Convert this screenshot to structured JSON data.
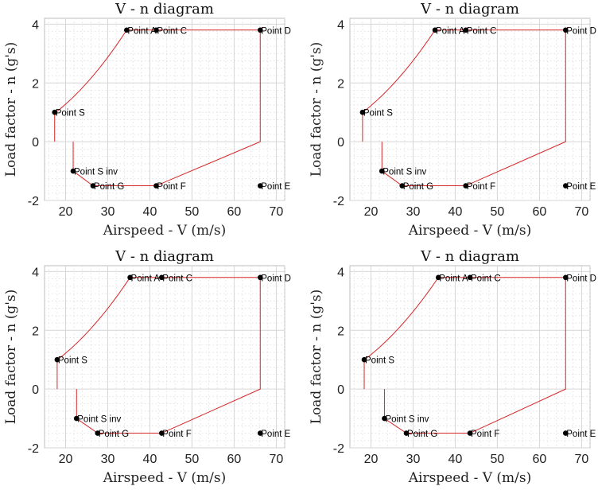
{
  "chart_data": [
    {
      "type": "line",
      "title": "V - n diagram",
      "xlabel": "Airspeed - V (m/s)",
      "ylabel": "Load factor - n (g's)",
      "xlim": [
        15,
        72
      ],
      "ylim": [
        -2,
        4.2
      ],
      "xticks": [
        20,
        30,
        40,
        50,
        60,
        70
      ],
      "yticks": [
        -2,
        0,
        2,
        4
      ],
      "grid": true,
      "envelope": [
        [
          17.4,
          0
        ],
        [
          17.4,
          1
        ],
        [
          34.5,
          3.8
        ],
        [
          41.5,
          3.8
        ],
        [
          66.2,
          3.8
        ],
        [
          66.2,
          0
        ],
        [
          41.5,
          -1.5
        ],
        [
          26.5,
          -1.5
        ],
        [
          21.8,
          -1
        ],
        [
          21.8,
          0
        ]
      ],
      "points": [
        {
          "label": "Point S",
          "x": 17.4,
          "y": 1
        },
        {
          "label": "Point A",
          "x": 34.5,
          "y": 3.8
        },
        {
          "label": "Point C",
          "x": 41.5,
          "y": 3.8
        },
        {
          "label": "Point D",
          "x": 66.2,
          "y": 3.8
        },
        {
          "label": "Point E",
          "x": 66.2,
          "y": -1.5
        },
        {
          "label": "Point F",
          "x": 41.5,
          "y": -1.5
        },
        {
          "label": "Point G",
          "x": 26.5,
          "y": -1.5
        },
        {
          "label": "Point S inv",
          "x": 21.8,
          "y": -1
        }
      ]
    },
    {
      "type": "line",
      "title": "V - n diagram",
      "xlabel": "Airspeed - V (m/s)",
      "ylabel": "Load factor - n (g's)",
      "xlim": [
        15,
        72
      ],
      "ylim": [
        -2,
        4.2
      ],
      "xticks": [
        20,
        30,
        40,
        50,
        60,
        70
      ],
      "yticks": [
        -2,
        0,
        2,
        4
      ],
      "grid": true,
      "envelope": [
        [
          18,
          0
        ],
        [
          18,
          1
        ],
        [
          35.2,
          3.8
        ],
        [
          42.5,
          3.8
        ],
        [
          66.2,
          3.8
        ],
        [
          66.2,
          0
        ],
        [
          42.5,
          -1.5
        ],
        [
          27.4,
          -1.5
        ],
        [
          22.6,
          -1
        ],
        [
          22.6,
          0
        ]
      ],
      "points": [
        {
          "label": "Point S",
          "x": 18,
          "y": 1
        },
        {
          "label": "Point A",
          "x": 35.2,
          "y": 3.8
        },
        {
          "label": "Point C",
          "x": 42.5,
          "y": 3.8
        },
        {
          "label": "Point D",
          "x": 66.2,
          "y": 3.8
        },
        {
          "label": "Point E",
          "x": 66.2,
          "y": -1.5
        },
        {
          "label": "Point F",
          "x": 42.5,
          "y": -1.5
        },
        {
          "label": "Point G",
          "x": 27.4,
          "y": -1.5
        },
        {
          "label": "Point S inv",
          "x": 22.6,
          "y": -1
        }
      ]
    },
    {
      "type": "line",
      "title": "V - n diagram",
      "xlabel": "Airspeed - V (m/s)",
      "ylabel": "Load factor - n (g's)",
      "xlim": [
        15,
        72
      ],
      "ylim": [
        -2,
        4.2
      ],
      "xticks": [
        20,
        30,
        40,
        50,
        60,
        70
      ],
      "yticks": [
        -2,
        0,
        2,
        4
      ],
      "grid": true,
      "envelope": [
        [
          18,
          0
        ],
        [
          18,
          1
        ],
        [
          35.3,
          3.8
        ],
        [
          42.8,
          3.8
        ],
        [
          66.2,
          3.8
        ],
        [
          66.2,
          0
        ],
        [
          42.8,
          -1.5
        ],
        [
          27.6,
          -1.5
        ],
        [
          22.6,
          -1
        ],
        [
          22.6,
          0
        ]
      ],
      "points": [
        {
          "label": "Point S",
          "x": 18,
          "y": 1
        },
        {
          "label": "Point A",
          "x": 35.3,
          "y": 3.8
        },
        {
          "label": "Point C",
          "x": 42.8,
          "y": 3.8
        },
        {
          "label": "Point D",
          "x": 66.2,
          "y": 3.8
        },
        {
          "label": "Point E",
          "x": 66.2,
          "y": -1.5
        },
        {
          "label": "Point F",
          "x": 42.8,
          "y": -1.5
        },
        {
          "label": "Point G",
          "x": 27.6,
          "y": -1.5
        },
        {
          "label": "Point S inv",
          "x": 22.6,
          "y": -1
        }
      ]
    },
    {
      "type": "line",
      "title": "V - n diagram",
      "xlabel": "Airspeed - V (m/s)",
      "ylabel": "Load factor - n (g's)",
      "xlim": [
        15,
        72
      ],
      "ylim": [
        -2,
        4.2
      ],
      "xticks": [
        20,
        30,
        40,
        50,
        60,
        70
      ],
      "yticks": [
        -2,
        0,
        2,
        4
      ],
      "grid": true,
      "envelope": [
        [
          18.4,
          0
        ],
        [
          18.4,
          1
        ],
        [
          36,
          3.8
        ],
        [
          43.5,
          3.8
        ],
        [
          66.2,
          3.8
        ],
        [
          66.2,
          0
        ],
        [
          43.5,
          -1.5
        ],
        [
          28.4,
          -1.5
        ],
        [
          23.2,
          -1
        ],
        [
          23.2,
          0
        ]
      ],
      "points": [
        {
          "label": "Point S",
          "x": 18.4,
          "y": 1
        },
        {
          "label": "Point A",
          "x": 36,
          "y": 3.8
        },
        {
          "label": "Point C",
          "x": 43.5,
          "y": 3.8
        },
        {
          "label": "Point D",
          "x": 66.2,
          "y": 3.8
        },
        {
          "label": "Point E",
          "x": 66.2,
          "y": -1.5
        },
        {
          "label": "Point F",
          "x": 43.5,
          "y": -1.5
        },
        {
          "label": "Point G",
          "x": 28.4,
          "y": -1.5
        },
        {
          "label": "Point S inv",
          "x": 23.2,
          "y": -1
        }
      ]
    }
  ]
}
